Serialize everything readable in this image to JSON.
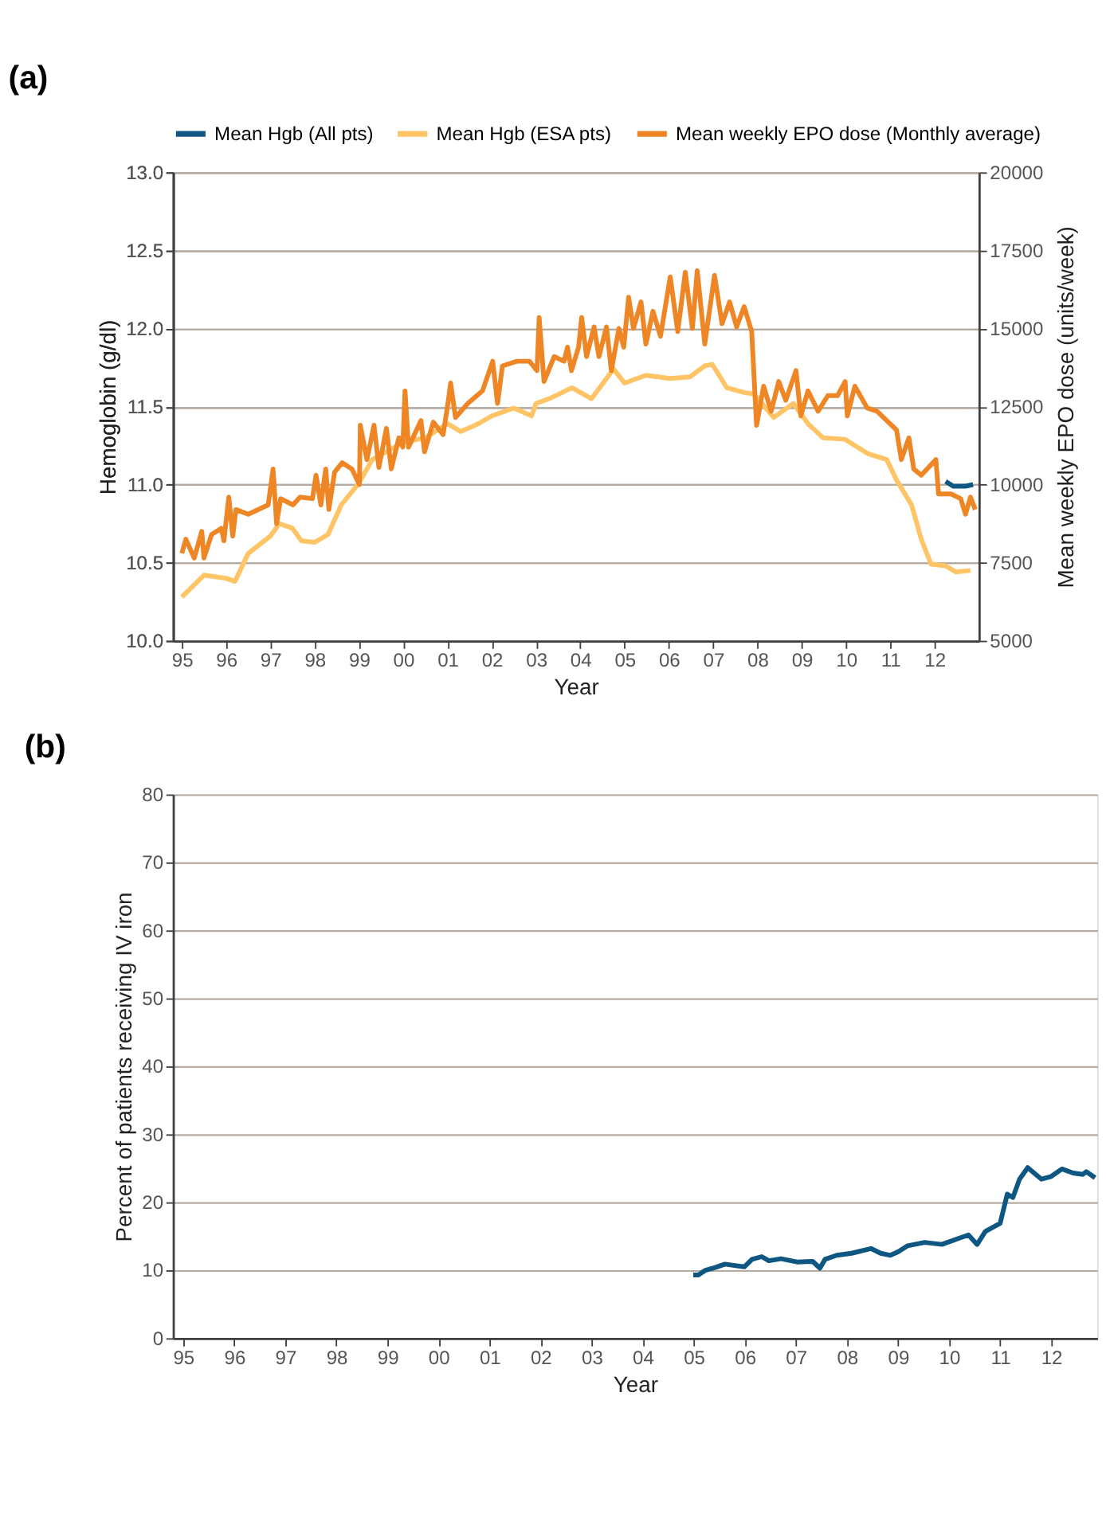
{
  "chart_data": [
    {
      "type": "line",
      "title": "(a)",
      "xlabel": "Year",
      "ylabel": "Hemoglobin (g/dl)",
      "y2label": "Mean weekly EPO dose (units/week)",
      "xlim": [
        1994.8,
        2013.0
      ],
      "xticks": [
        {
          "value": 1995,
          "label": "95"
        },
        {
          "value": 1996,
          "label": "96"
        },
        {
          "value": 1997,
          "label": "97"
        },
        {
          "value": 1998,
          "label": "98"
        },
        {
          "value": 1999,
          "label": "99"
        },
        {
          "value": 2000,
          "label": "00"
        },
        {
          "value": 2001,
          "label": "01"
        },
        {
          "value": 2002,
          "label": "02"
        },
        {
          "value": 2003,
          "label": "03"
        },
        {
          "value": 2004,
          "label": "04"
        },
        {
          "value": 2005,
          "label": "05"
        },
        {
          "value": 2006,
          "label": "06"
        },
        {
          "value": 2007,
          "label": "07"
        },
        {
          "value": 2008,
          "label": "08"
        },
        {
          "value": 2009,
          "label": "09"
        },
        {
          "value": 2010,
          "label": "10"
        },
        {
          "value": 2011,
          "label": "11"
        },
        {
          "value": 2012,
          "label": "12"
        }
      ],
      "ylim": [
        10.0,
        13.0
      ],
      "yticks": [
        {
          "value": 10,
          "label": "10.0"
        },
        10.5,
        {
          "value": 11,
          "label": "11.0"
        },
        11.5,
        {
          "value": 12,
          "label": "12.0"
        },
        12.5,
        {
          "value": 13,
          "label": "13.0"
        }
      ],
      "y2lim": [
        5000,
        20000
      ],
      "y2ticks": [
        5000,
        7500,
        10000,
        12500,
        15000,
        17500,
        20000
      ],
      "grid": "y",
      "legend": "top",
      "marker": "none",
      "line_style": "solid",
      "series": [
        {
          "name": "Mean Hgb (All pts)",
          "color": "#0f5783",
          "axis": "y",
          "x": [
            2012.25,
            2012.42,
            2012.7,
            2012.87
          ],
          "values": [
            11.02,
            10.99,
            10.99,
            11.0
          ]
        },
        {
          "name": "Mean Hgb (ESA pts)",
          "color": "#ffc465",
          "axis": "y",
          "x": [
            1995.0,
            1995.5,
            1996.0,
            1996.2,
            1996.5,
            1997.0,
            1997.2,
            1997.5,
            1997.7,
            1998.0,
            1998.3,
            1998.6,
            1999.0,
            1999.3,
            2000.0,
            2000.5,
            2001.0,
            2001.3,
            2001.7,
            2002.0,
            2002.5,
            2002.9,
            2003.0,
            2003.3,
            2003.81,
            2004.25,
            2004.75,
            2005.0,
            2005.48,
            2006.03,
            2006.48,
            2006.81,
            2006.98,
            2007.31,
            2007.7,
            2007.92,
            2008.37,
            2008.81,
            2009.14,
            2009.48,
            2009.98,
            2010.48,
            2010.92,
            2011.14,
            2011.48,
            2011.7,
            2011.92,
            2012.25,
            2012.48,
            2012.81
          ],
          "values": [
            10.28,
            10.42,
            10.4,
            10.38,
            10.56,
            10.67,
            10.75,
            10.72,
            10.64,
            10.63,
            10.68,
            10.87,
            11.01,
            11.16,
            11.27,
            11.3,
            11.39,
            11.34,
            11.39,
            11.44,
            11.49,
            11.44,
            11.52,
            11.55,
            11.62,
            11.55,
            11.74,
            11.65,
            11.7,
            11.68,
            11.69,
            11.76,
            11.77,
            11.62,
            11.59,
            11.58,
            11.43,
            11.52,
            11.39,
            11.3,
            11.29,
            11.2,
            11.16,
            11.03,
            10.87,
            10.65,
            10.49,
            10.48,
            10.44,
            10.45
          ]
        },
        {
          "name": "Mean weekly EPO dose (Monthly average)",
          "color": "#ee8626",
          "axis": "y2",
          "x": [
            1995.0,
            1995.09,
            1995.28,
            1995.45,
            1995.5,
            1995.67,
            1995.89,
            1995.95,
            1996.06,
            1996.15,
            1996.22,
            1996.5,
            1996.95,
            1997.06,
            1997.14,
            1997.23,
            1997.51,
            1997.67,
            1997.95,
            1998.03,
            1998.14,
            1998.25,
            1998.32,
            1998.45,
            1998.62,
            1998.84,
            1999.01,
            1999.03,
            1999.18,
            1999.34,
            1999.45,
            1999.62,
            1999.73,
            1999.9,
            1999.99,
            2000.04,
            2000.12,
            2000.4,
            2000.48,
            2000.68,
            2000.9,
            2001.01,
            2001.07,
            2001.18,
            2001.46,
            2001.79,
            2002.02,
            2002.13,
            2002.24,
            2002.57,
            2002.85,
            2003.02,
            2003.07,
            2003.18,
            2003.41,
            2003.63,
            2003.71,
            2003.8,
            2003.96,
            2004.03,
            2004.14,
            2004.31,
            2004.42,
            2004.59,
            2004.7,
            2004.87,
            2004.98,
            2005.09,
            2005.2,
            2005.37,
            2005.48,
            2005.64,
            2005.81,
            2006.03,
            2006.2,
            2006.37,
            2006.53,
            2006.64,
            2006.81,
            2007.03,
            2007.2,
            2007.37,
            2007.53,
            2007.7,
            2007.87,
            2007.98,
            2008.14,
            2008.31,
            2008.48,
            2008.64,
            2008.87,
            2008.98,
            2009.14,
            2009.37,
            2009.59,
            2009.81,
            2009.98,
            2010.03,
            2010.2,
            2010.48,
            2010.7,
            2010.92,
            2011.14,
            2011.25,
            2011.42,
            2011.53,
            2011.7,
            2012.03,
            2012.09,
            2012.37,
            2012.59,
            2012.7,
            2012.81,
            2012.92
          ],
          "values": [
            7800,
            8250,
            7650,
            8500,
            7650,
            8400,
            8600,
            8200,
            9600,
            8350,
            9200,
            9050,
            9350,
            10500,
            8750,
            9550,
            9350,
            9600,
            9550,
            10300,
            9350,
            10500,
            9200,
            10400,
            10700,
            10500,
            10000,
            11900,
            10800,
            11900,
            10550,
            11800,
            10500,
            11500,
            11200,
            13000,
            11200,
            12050,
            11050,
            12000,
            11600,
            12600,
            13250,
            12150,
            12600,
            13000,
            13950,
            12600,
            13800,
            13950,
            13950,
            13650,
            15350,
            13300,
            14100,
            13950,
            14400,
            13650,
            14400,
            15350,
            14100,
            15050,
            14100,
            15050,
            13650,
            15000,
            14400,
            16000,
            15000,
            15850,
            14500,
            15550,
            14750,
            16650,
            14900,
            16800,
            15000,
            16850,
            14500,
            16700,
            15150,
            15850,
            15050,
            15700,
            14900,
            11900,
            13150,
            12350,
            13300,
            12700,
            13650,
            12200,
            13000,
            12350,
            12850,
            12850,
            13300,
            12200,
            13150,
            12450,
            12350,
            12050,
            11750,
            10800,
            11500,
            10500,
            10300,
            10800,
            9700,
            9700,
            9550,
            9050,
            9600,
            9200
          ]
        }
      ]
    },
    {
      "type": "line",
      "title": "(b)",
      "xlabel": "Year",
      "ylabel": "Percent of patients receiving IV iron",
      "xlim": [
        1994.8,
        2012.9
      ],
      "xticks": [
        {
          "value": 1995,
          "label": "95"
        },
        {
          "value": 1996,
          "label": "96"
        },
        {
          "value": 1997,
          "label": "97"
        },
        {
          "value": 1998,
          "label": "98"
        },
        {
          "value": 1999,
          "label": "99"
        },
        {
          "value": 2000,
          "label": "00"
        },
        {
          "value": 2001,
          "label": "01"
        },
        {
          "value": 2002,
          "label": "02"
        },
        {
          "value": 2003,
          "label": "03"
        },
        {
          "value": 2004,
          "label": "04"
        },
        {
          "value": 2005,
          "label": "05"
        },
        {
          "value": 2006,
          "label": "06"
        },
        {
          "value": 2007,
          "label": "07"
        },
        {
          "value": 2008,
          "label": "08"
        },
        {
          "value": 2009,
          "label": "09"
        },
        {
          "value": 2010,
          "label": "10"
        },
        {
          "value": 2011,
          "label": "11"
        },
        {
          "value": 2012,
          "label": "12"
        }
      ],
      "ylim": [
        0,
        80
      ],
      "yticks": [
        0,
        10,
        20,
        30,
        40,
        50,
        60,
        70,
        80
      ],
      "grid": "y",
      "marker": "none",
      "line_style": "solid",
      "series": [
        {
          "color": "#0f5783",
          "x": [
            2004.99,
            2005.09,
            2005.23,
            2005.42,
            2005.61,
            2005.8,
            2005.99,
            2006.14,
            2006.33,
            2006.47,
            2006.71,
            2007.04,
            2007.33,
            2007.47,
            2007.57,
            2007.8,
            2008.09,
            2008.47,
            2008.66,
            2008.85,
            2009.0,
            2009.19,
            2009.52,
            2009.86,
            2010.19,
            2010.38,
            2010.55,
            2010.71,
            2011.0,
            2011.14,
            2011.25,
            2011.38,
            2011.54,
            2011.81,
            2012.0,
            2012.21,
            2012.43,
            2012.62,
            2012.69,
            2012.86
          ],
          "values": [
            9.3,
            9.3,
            10.0,
            10.4,
            10.9,
            10.7,
            10.5,
            11.6,
            12.0,
            11.4,
            11.7,
            11.2,
            11.3,
            10.3,
            11.6,
            12.2,
            12.5,
            13.2,
            12.5,
            12.2,
            12.7,
            13.6,
            14.1,
            13.8,
            14.7,
            15.2,
            13.8,
            15.7,
            16.9,
            21.2,
            20.7,
            23.4,
            25.1,
            23.4,
            23.8,
            24.9,
            24.3,
            24.1,
            24.5,
            23.6
          ]
        }
      ]
    }
  ]
}
